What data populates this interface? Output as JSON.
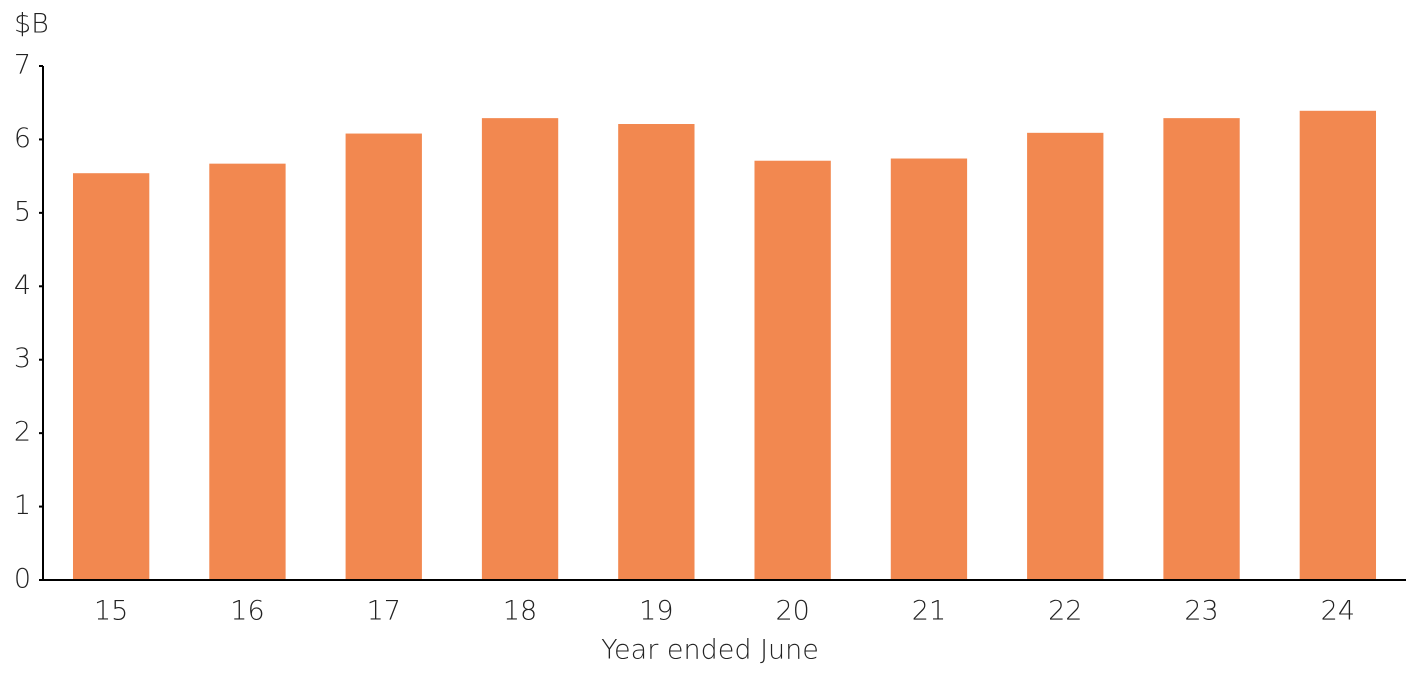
{
  "chart_data": {
    "type": "bar",
    "y_unit": "$B",
    "x_label": "Year ended June",
    "categories": [
      "15",
      "16",
      "17",
      "18",
      "19",
      "20",
      "21",
      "22",
      "23",
      "24"
    ],
    "values": [
      5.54,
      5.67,
      6.08,
      6.29,
      6.21,
      5.71,
      5.74,
      6.09,
      6.29,
      6.39
    ],
    "color": "#f28850",
    "ylim": [
      0,
      7
    ],
    "yticks": [
      0,
      1,
      2,
      3,
      4,
      5,
      6,
      7
    ],
    "grid": false
  }
}
